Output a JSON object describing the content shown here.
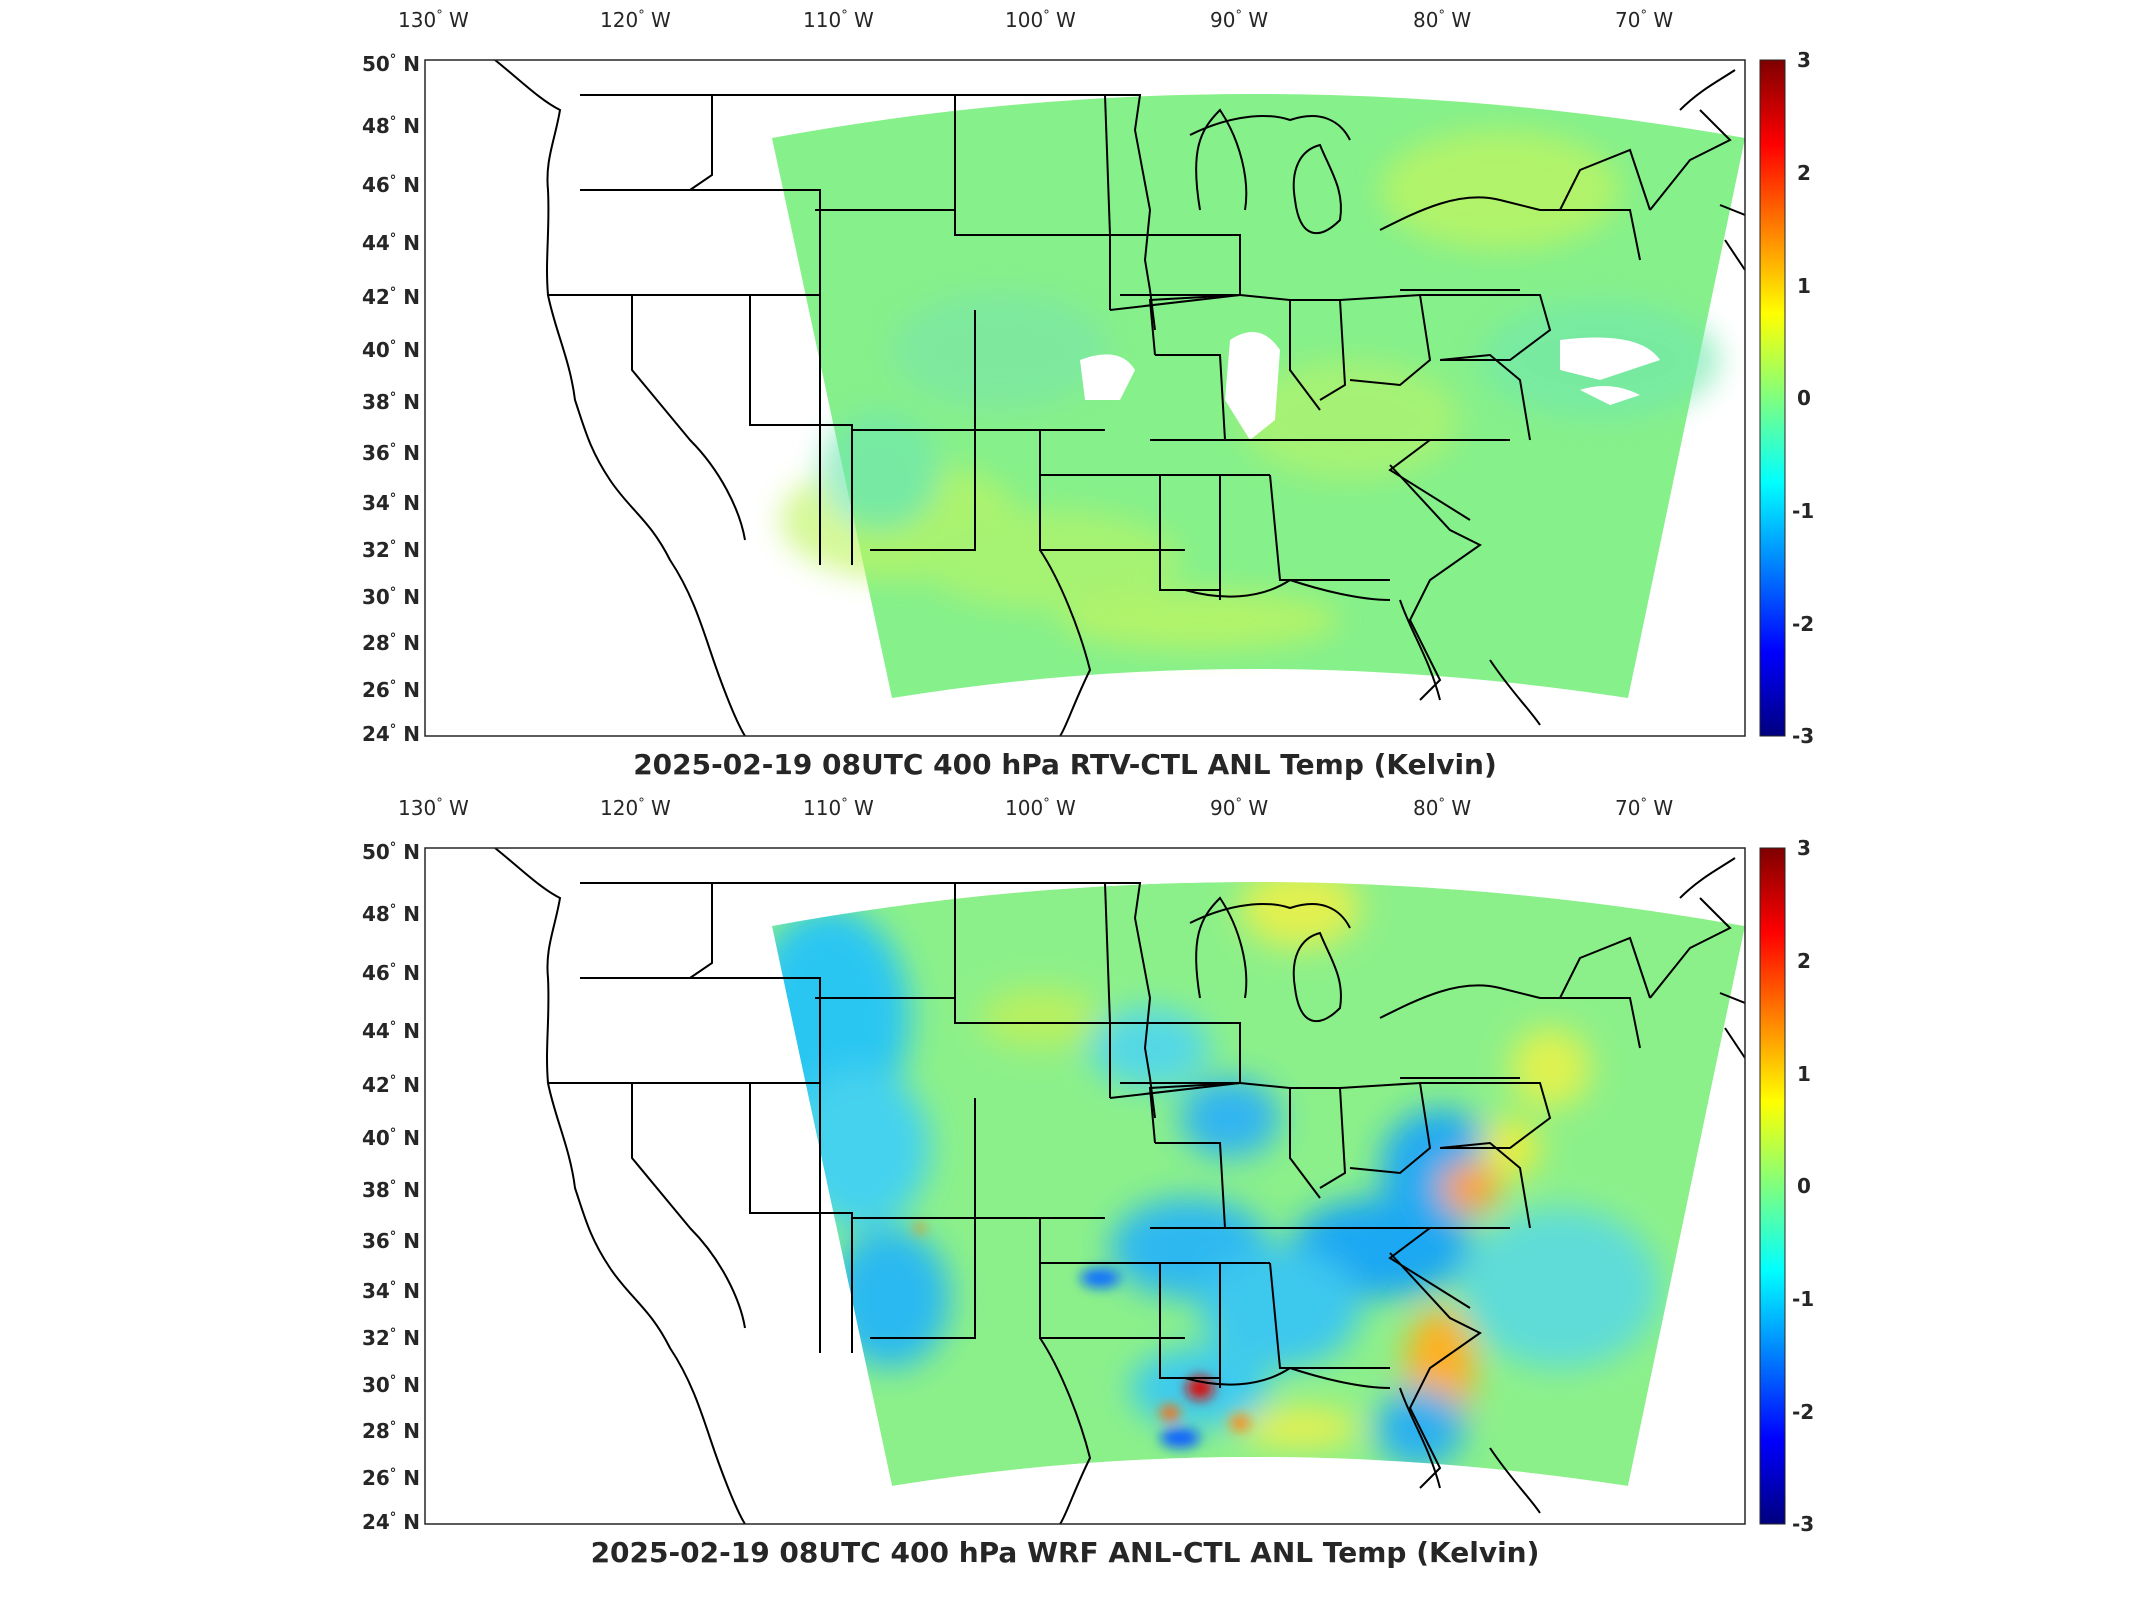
{
  "panels": [
    {
      "title": "2025-02-19 08UTC 400 hPa RTV-CTL ANL Temp (Kelvin)",
      "field": "rtv"
    },
    {
      "title": "2025-02-19 08UTC 400 hPa WRF ANL-CTL ANL Temp (Kelvin)",
      "field": "wrf"
    }
  ],
  "lon_labels": [
    "130",
    "120",
    "110",
    "100",
    "90",
    "80",
    "70"
  ],
  "lon_suffix": "W",
  "lat_labels": [
    "50",
    "48",
    "46",
    "44",
    "42",
    "40",
    "38",
    "36",
    "34",
    "32",
    "30",
    "28",
    "26",
    "24"
  ],
  "lat_suffix": "N",
  "colorbar": {
    "ticks": [
      "3",
      "2",
      "1",
      "0",
      "-1",
      "-2",
      "-3"
    ],
    "range": [
      -3,
      3
    ],
    "colormap": "jet",
    "colors": [
      "#00007f",
      "#0000ff",
      "#00bfff",
      "#7fff7f",
      "#ffff00",
      "#ff7f00",
      "#ff0000",
      "#7f0000"
    ]
  },
  "map": {
    "projection": "lambert-conformal",
    "lon_range": [
      -131,
      -64
    ],
    "lat_range": [
      24,
      50
    ],
    "background_value": 0,
    "missing_color": "#ffffff"
  }
}
